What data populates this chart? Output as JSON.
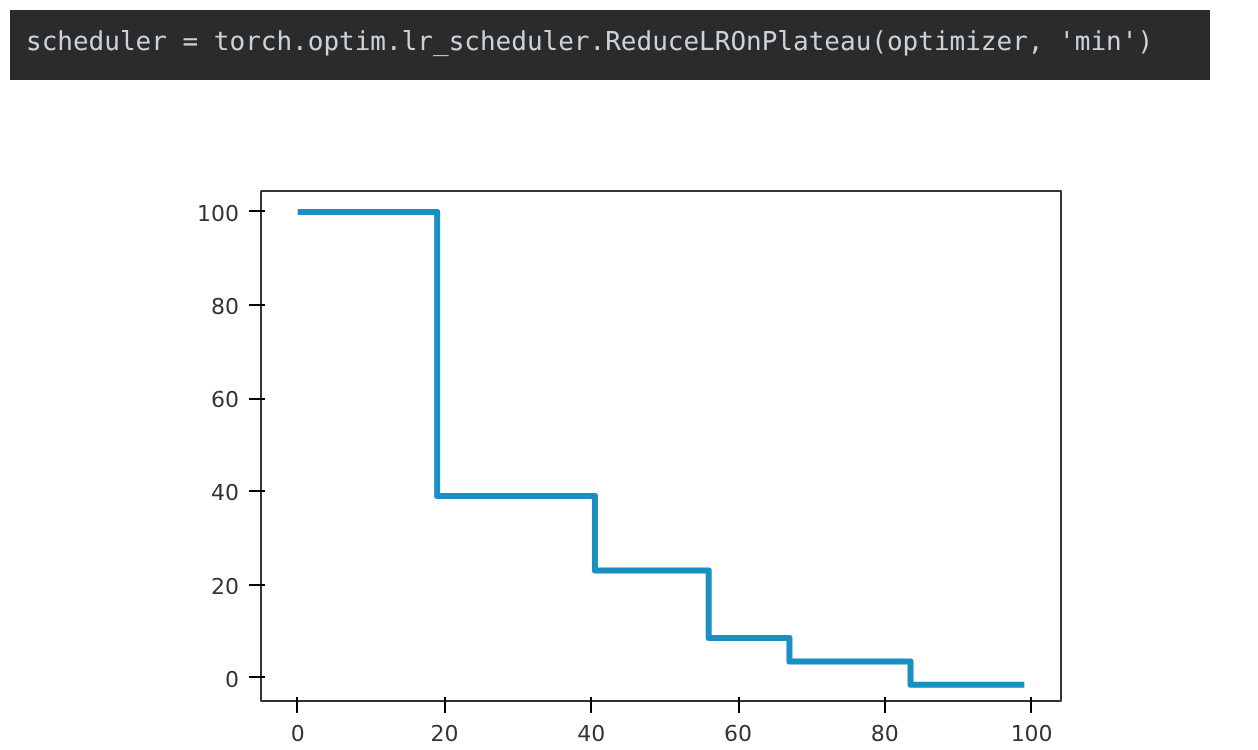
{
  "chart_data": {
    "type": "step",
    "title": "scheduler = torch.optim.lr_scheduler.ReduceLROnPlateau(optimizer, 'min')",
    "x": [
      0,
      19,
      40.5,
      56,
      67,
      83.5,
      99
    ],
    "series": [
      {
        "color": "#1a8fc2",
        "values": [
          100,
          39,
          23,
          8.5,
          3.5,
          -1.5,
          -1.5
        ]
      }
    ],
    "xlim": [
      -5,
      104
    ],
    "ylim": [
      -5,
      104.5
    ],
    "xticks": [
      0,
      20,
      40,
      60,
      80,
      100
    ],
    "yticks": [
      0,
      20,
      40,
      60,
      80,
      100
    ],
    "grid": false,
    "marker": "none",
    "line_style": "solid"
  }
}
